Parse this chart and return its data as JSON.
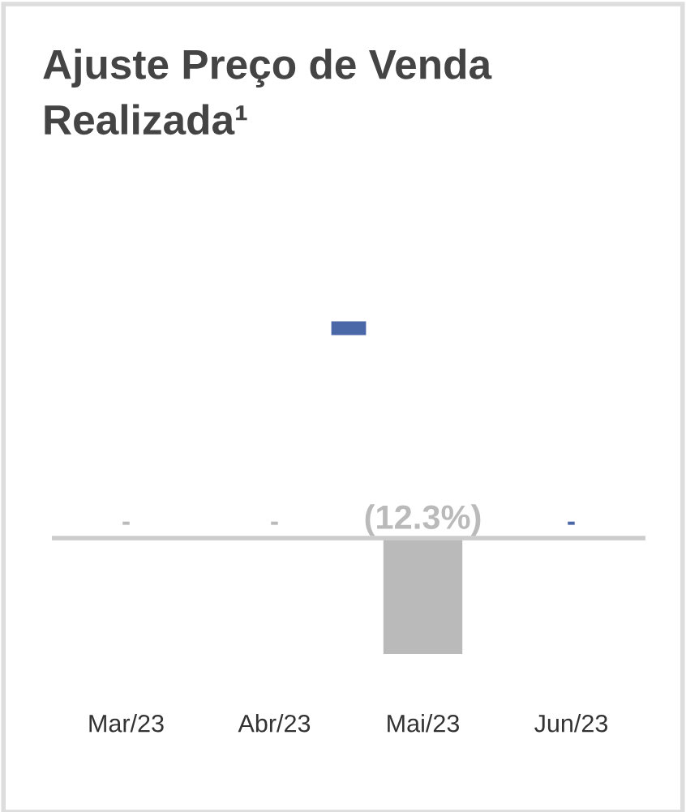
{
  "chart_data": {
    "type": "bar",
    "title": "Ajuste Preço de Venda Realizada¹",
    "categories": [
      "Mar/23",
      "Abr/23",
      "Mai/23",
      "Jun/23"
    ],
    "values": [
      0,
      0,
      -12.3,
      0
    ],
    "colors": [
      "#bababa",
      "#bababa",
      "#bababa",
      "#4a67a8"
    ],
    "value_labels": [
      "-",
      "-",
      "(12.3%)",
      "-"
    ],
    "grid": false,
    "legend": false
  }
}
